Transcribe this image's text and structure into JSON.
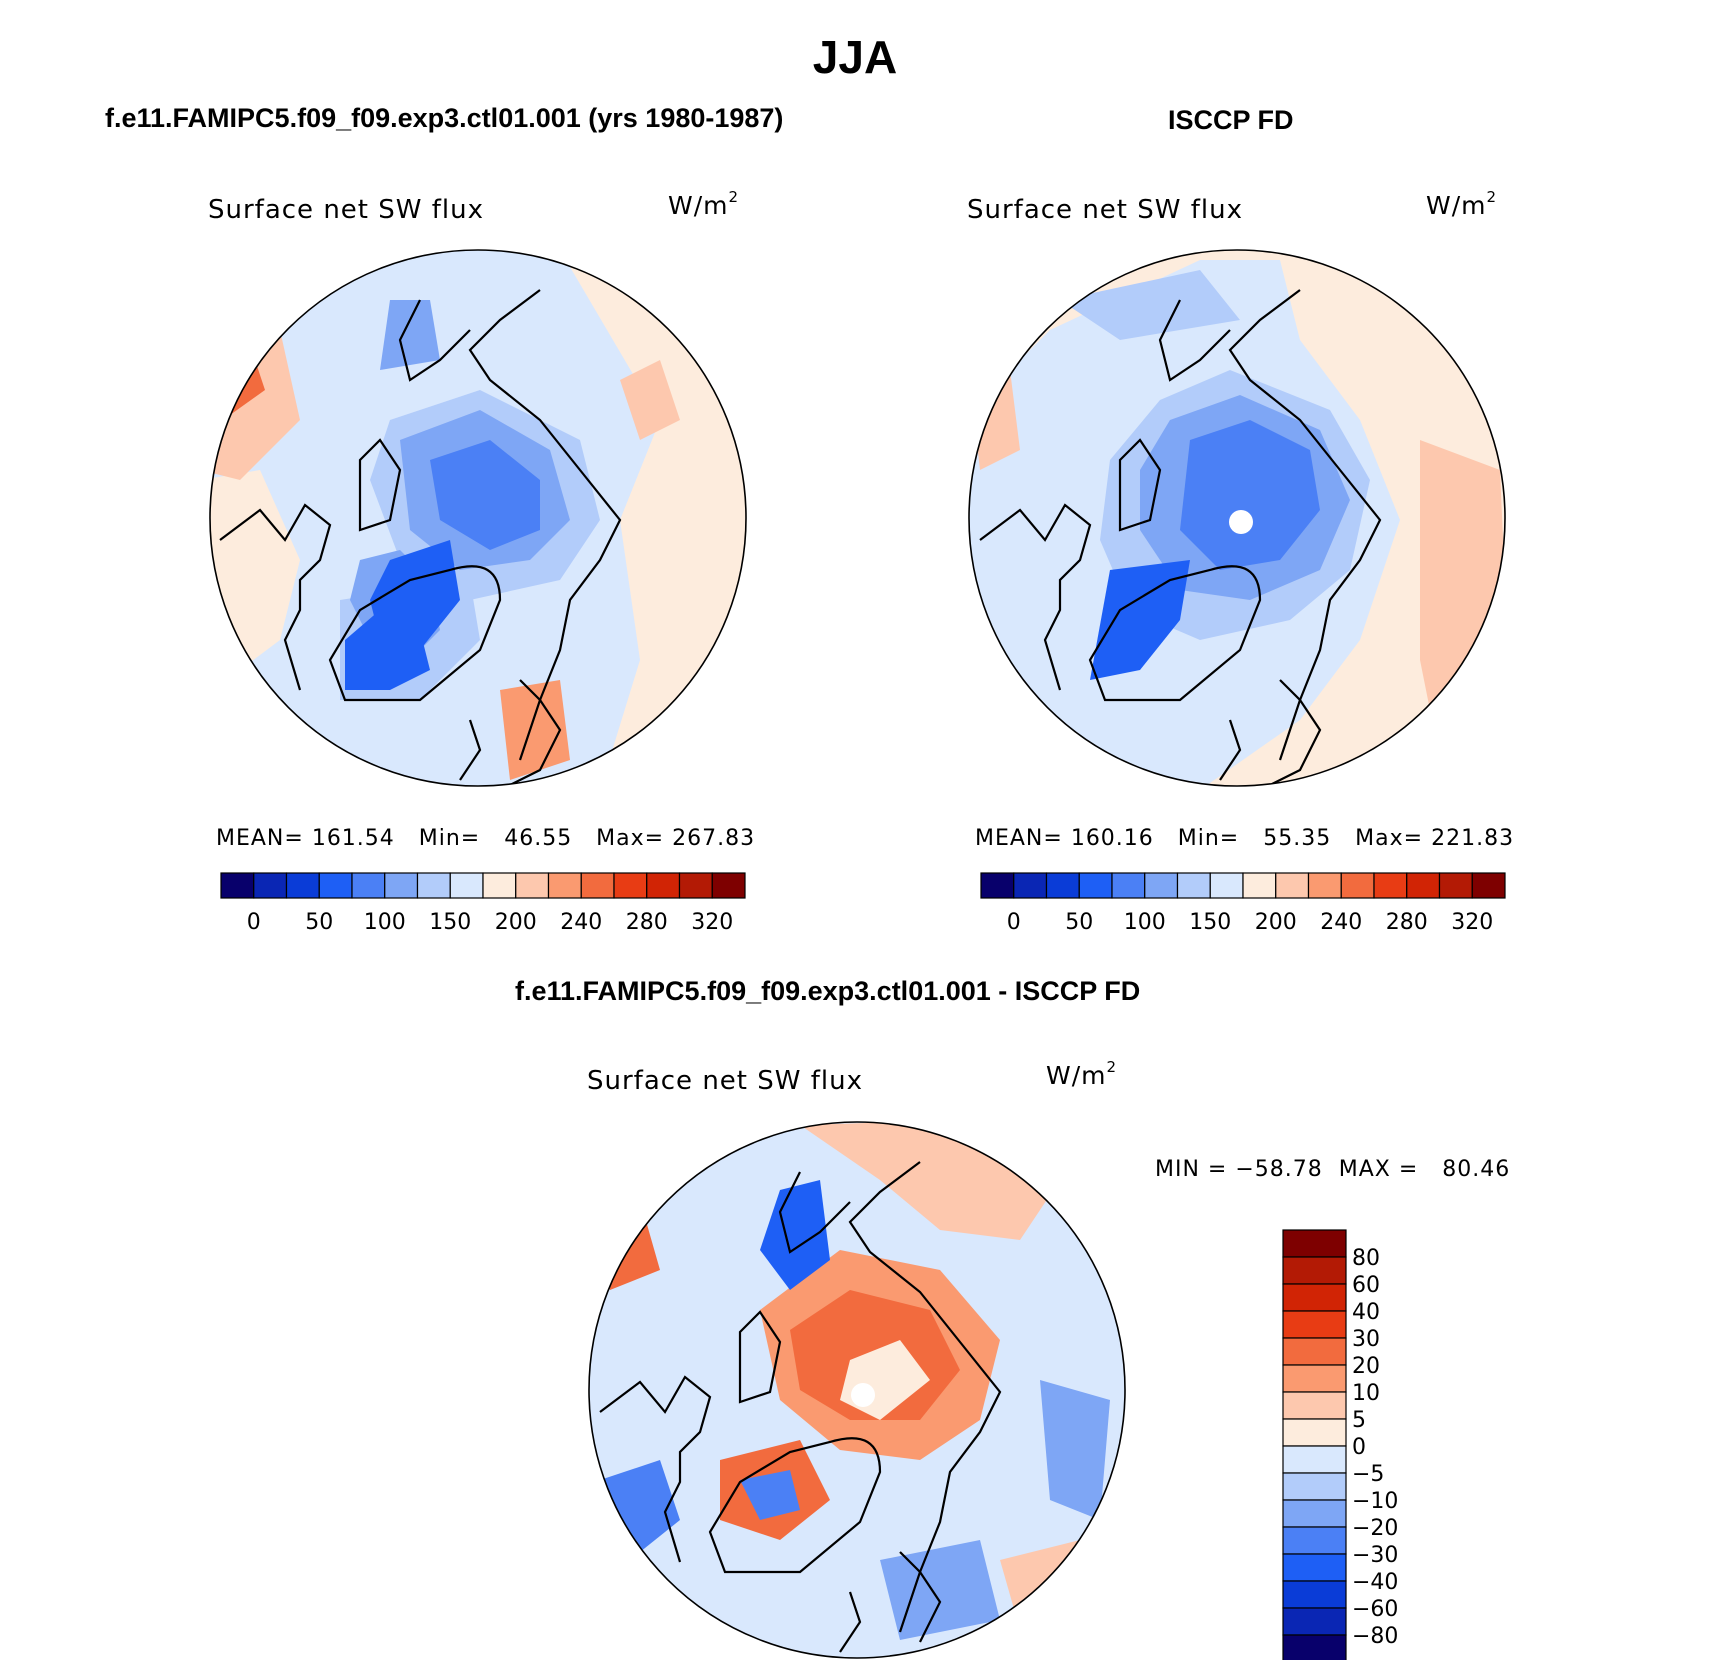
{
  "figure": {
    "season_title": "JJA",
    "colors": {
      "scale": [
        "#08006b",
        "#0a26b4",
        "#0a3cd7",
        "#1e5ff5",
        "#4b80f5",
        "#7ea6f5",
        "#b2ccfa",
        "#d9e8fd",
        "#fdecdd",
        "#fdc8ae",
        "#fa9a70",
        "#f26b3e",
        "#e83c14",
        "#d12405",
        "#b31a05",
        "#7e0000"
      ],
      "coast": "#000000",
      "missing": "#ffffff"
    },
    "panels": [
      {
        "id": "model",
        "title": "f.e11.FAMIPC5.f09_f09.exp3.ctl01.001 (yrs 1980-1987)",
        "variable": "Surface net SW flux",
        "units_base": "W/m",
        "units_exp": "2",
        "stats": "MEAN= 161.54   Min=   46.55   Max= 267.83",
        "colorbar_labels": [
          "0",
          "50",
          "100",
          "150",
          "200",
          "240",
          "280",
          "320"
        ]
      },
      {
        "id": "obs",
        "title": "ISCCP FD",
        "variable": "Surface net SW flux",
        "units_base": "W/m",
        "units_exp": "2",
        "stats": "MEAN= 160.16   Min=   55.35   Max= 221.83",
        "colorbar_labels": [
          "0",
          "50",
          "100",
          "150",
          "200",
          "240",
          "280",
          "320"
        ]
      },
      {
        "id": "diff",
        "title": "f.e11.FAMIPC5.f09_f09.exp3.ctl01.001 - ISCCP FD",
        "variable": "Surface net SW flux",
        "units_base": "W/m",
        "units_exp": "2",
        "stats": "MIN = −58.78  MAX =   80.46",
        "colorbar_labels": [
          "80",
          "60",
          "40",
          "30",
          "20",
          "10",
          "5",
          "0",
          "−5",
          "−10",
          "−20",
          "−30",
          "−40",
          "−60",
          "−80"
        ]
      }
    ]
  }
}
